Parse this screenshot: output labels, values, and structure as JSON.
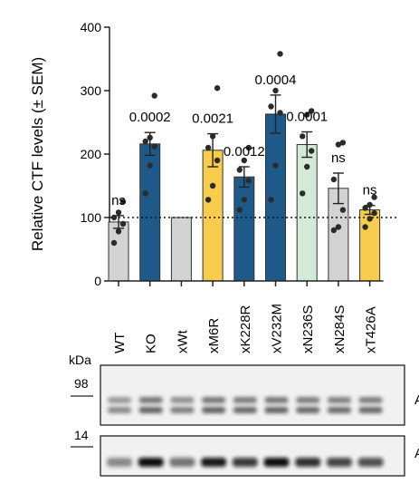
{
  "chart_data": {
    "type": "bar",
    "ylabel": "Relative CTF levels (± SEM)",
    "ylim": [
      0,
      400
    ],
    "yticks": [
      0,
      100,
      200,
      300,
      400
    ],
    "reference_line": 100,
    "categories": [
      "WT",
      "KO",
      "xWt",
      "xM6R",
      "xK228R",
      "xV232M",
      "xN236S",
      "xN284S",
      "xT426A"
    ],
    "values": [
      93,
      216,
      100,
      206,
      164,
      263,
      215,
      146,
      112
    ],
    "errors": [
      10,
      18,
      0,
      26,
      16,
      30,
      20,
      24,
      7
    ],
    "colors": [
      "#d3d3d3",
      "#1d5a8a",
      "#d3d3d3",
      "#f8cd4d",
      "#1d5a8a",
      "#1d5a8a",
      "#d3ebd6",
      "#d3d3d3",
      "#f8cd4d"
    ],
    "annotations": [
      "ns",
      "0.0002",
      "",
      "0.0021",
      "0.0012",
      "0.0004",
      "0.0001",
      "ns",
      "ns"
    ],
    "points": [
      [
        60,
        78,
        90,
        100,
        108,
        125
      ],
      [
        138,
        182,
        212,
        220,
        226,
        292
      ],
      [],
      [
        128,
        150,
        190,
        210,
        228,
        304
      ],
      [
        112,
        128,
        158,
        175,
        190,
        210
      ],
      [
        128,
        182,
        265,
        275,
        300,
        358
      ],
      [
        138,
        180,
        205,
        228,
        262,
        268
      ],
      [
        80,
        85,
        112,
        160,
        215,
        218
      ],
      [
        85,
        98,
        107,
        115,
        120,
        132
      ]
    ]
  },
  "blot": {
    "unit_label": "kDa",
    "markers": [
      "98",
      "14"
    ],
    "lane_labels": [
      "WT",
      "KO",
      "xWt",
      "xM6R",
      "xK228R",
      "xV232M",
      "xN236S",
      "xN284S",
      "xT426A"
    ],
    "upper_band_intensity": [
      0.55,
      0.75,
      0.6,
      0.75,
      0.72,
      0.75,
      0.72,
      0.7,
      0.72
    ],
    "lower_band_intensity": [
      0.45,
      1.0,
      0.55,
      0.95,
      0.8,
      1.0,
      0.85,
      0.75,
      0.7
    ],
    "right_labels": [
      "A",
      "A"
    ]
  }
}
